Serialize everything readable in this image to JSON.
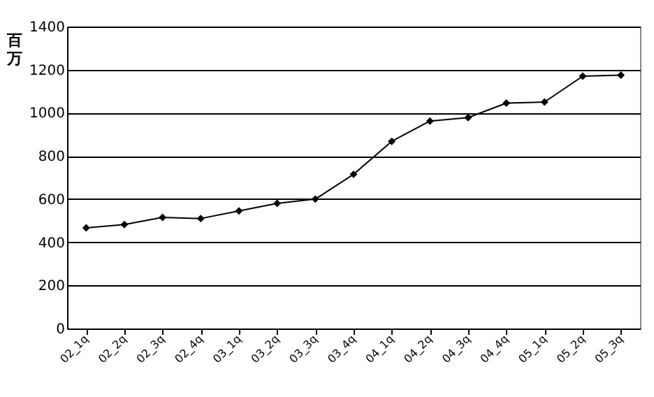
{
  "chart_data": {
    "type": "line",
    "ylabel": "百万",
    "categories": [
      "02_1q",
      "02_2q",
      "02_3q",
      "02_4q",
      "03_1q",
      "03_2q",
      "03_3q",
      "03_4q",
      "04_1q",
      "04_2q",
      "04_3q",
      "04_4q",
      "05_1q",
      "05_2q",
      "05_3q"
    ],
    "series": [
      {
        "color": "#000000",
        "values": [
          467,
          482,
          515,
          510,
          545,
          580,
          600,
          715,
          868,
          962,
          978,
          1045,
          1050,
          1170,
          1175
        ]
      }
    ],
    "ylim": [
      0,
      1400
    ],
    "yticks": [
      0,
      200,
      400,
      600,
      800,
      1000,
      1200,
      1400
    ],
    "grid": "y",
    "marker": "diamond",
    "line_style": "solid"
  }
}
